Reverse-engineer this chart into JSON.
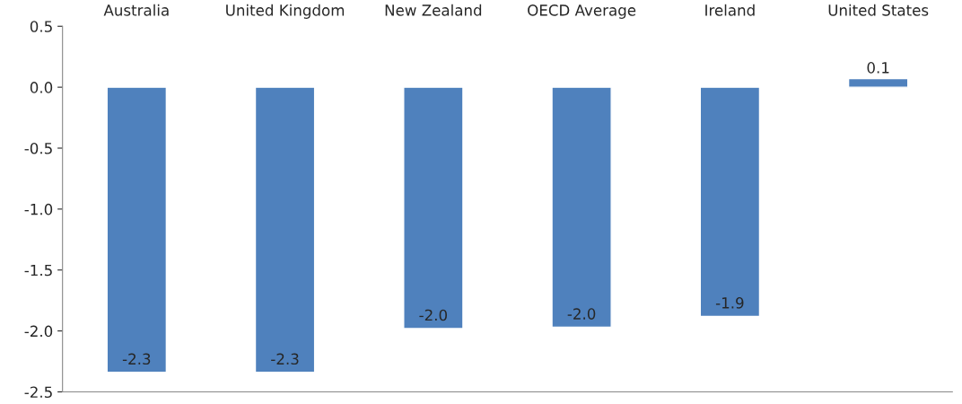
{
  "chart_data": {
    "type": "bar",
    "categories": [
      "Australia",
      "United Kingdom",
      "New Zealand",
      "OECD Average",
      "Ireland",
      "United States"
    ],
    "values": [
      -2.34,
      -2.34,
      -1.98,
      -1.97,
      -1.88,
      0.07
    ],
    "value_labels": [
      "-2.3",
      "-2.3",
      "-2.0",
      "-2.0",
      "-1.9",
      "0.1"
    ],
    "color": "#4f81bd",
    "ylim": [
      -2.5,
      0.5
    ],
    "yticks": [
      {
        "value": 0.5,
        "label": "0.5"
      },
      {
        "value": 0,
        "label": "0.0"
      },
      {
        "value": -0.5,
        "label": "-0.5"
      },
      {
        "value": -1,
        "label": "-1.0"
      },
      {
        "value": -1.5,
        "label": "-1.5"
      },
      {
        "value": -2,
        "label": "-2.0"
      },
      {
        "value": -2.5,
        "label": "-2.5"
      }
    ],
    "grid": false,
    "legend": false
  }
}
